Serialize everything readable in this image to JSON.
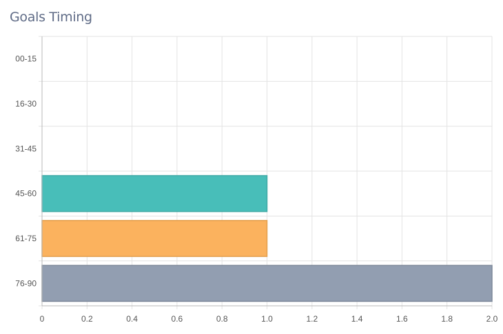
{
  "chart_data": {
    "type": "bar",
    "orientation": "horizontal",
    "title": "Goals Timing",
    "categories": [
      "00-15",
      "16-30",
      "31-45",
      "45-60",
      "61-75",
      "76-90"
    ],
    "values": [
      0,
      0,
      0,
      1,
      1,
      2
    ],
    "colors": [
      "#48beb9",
      "#48beb9",
      "#48beb9",
      "#48beb9",
      "#fbb25e",
      "#929eb1"
    ],
    "stroke_colors": [
      "#3fa9a5",
      "#3fa9a5",
      "#3fa9a5",
      "#3fa9a5",
      "#e39f4d",
      "#7d889a"
    ],
    "xlim": [
      0,
      2
    ],
    "x_ticks": [
      "0",
      "0.2",
      "0.4",
      "0.6",
      "0.8",
      "1.0",
      "1.2",
      "1.4",
      "1.6",
      "1.8",
      "2.0"
    ],
    "xlabel": "",
    "ylabel": "",
    "grid": true,
    "legend": "none"
  }
}
